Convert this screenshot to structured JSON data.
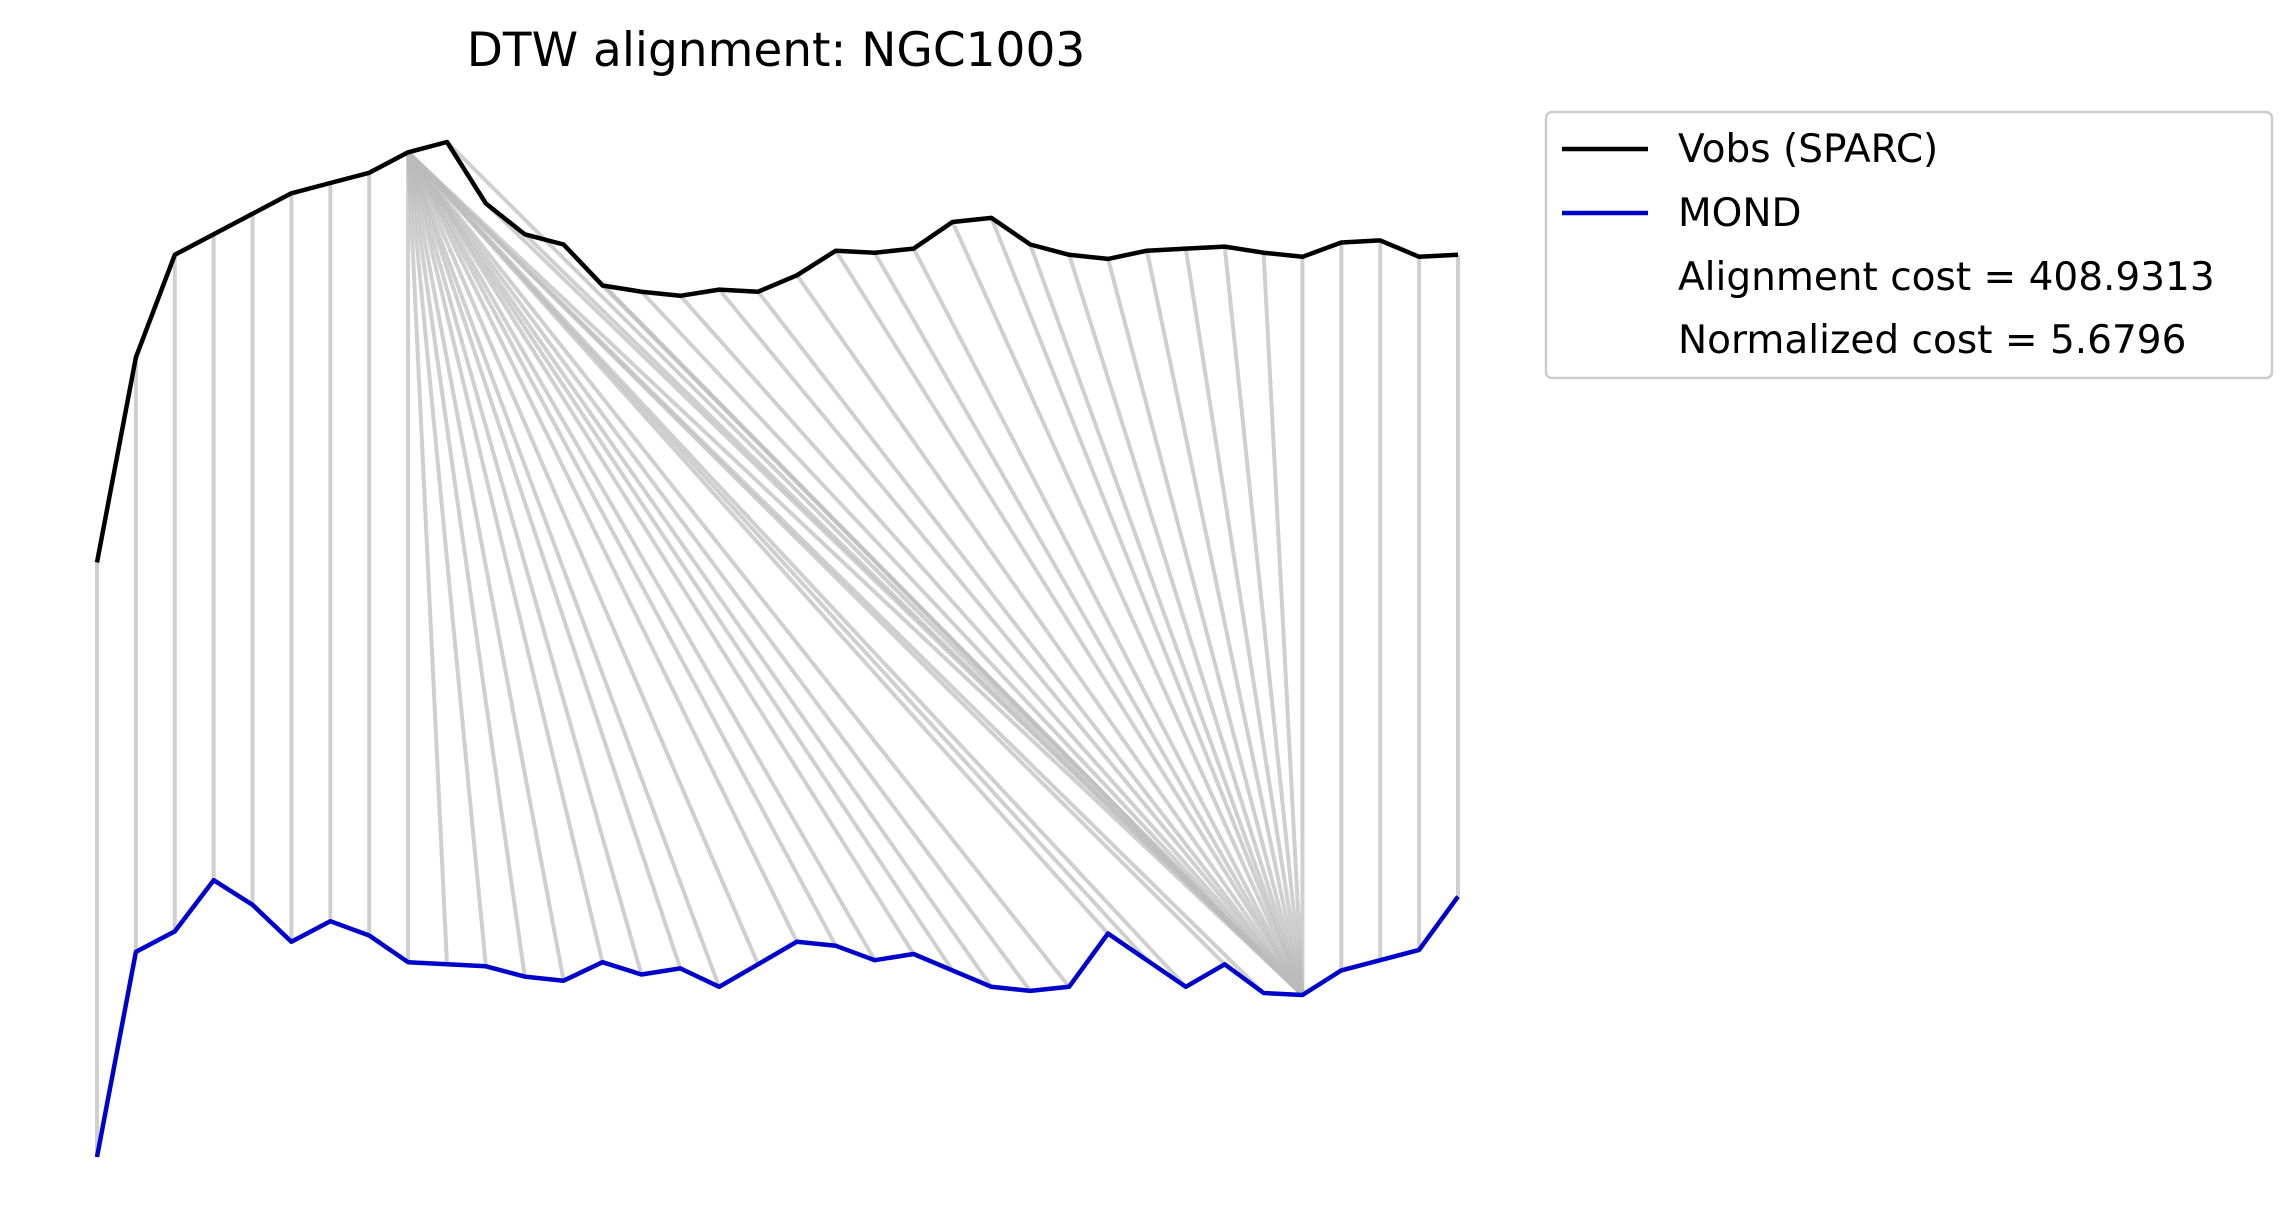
{
  "chart_data": {
    "type": "line",
    "title": "DTW alignment: NGC1003",
    "axes_visible": false,
    "x": [
      0,
      1,
      2,
      3,
      4,
      5,
      6,
      7,
      8,
      9,
      10,
      11,
      12,
      13,
      14,
      15,
      16,
      17,
      18,
      19,
      20,
      21,
      22,
      23,
      24,
      25,
      26,
      27,
      28,
      29,
      30,
      31,
      32,
      33,
      34,
      35
    ],
    "series": [
      {
        "name": "Vobs (SPARC)",
        "color": "#000000",
        "values": [
          1.0,
          1.1,
          1.15,
          1.16,
          1.17,
          1.18,
          1.185,
          1.19,
          1.2,
          1.205,
          1.175,
          1.16,
          1.155,
          1.135,
          1.132,
          1.13,
          1.133,
          1.132,
          1.14,
          1.152,
          1.151,
          1.153,
          1.166,
          1.168,
          1.155,
          1.15,
          1.148,
          1.152,
          1.153,
          1.154,
          1.151,
          1.149,
          1.156,
          1.157,
          1.149,
          1.15
        ]
      },
      {
        "name": "MOND",
        "color": "#0000cc",
        "values": [
          0.71,
          0.81,
          0.82,
          0.845,
          0.833,
          0.815,
          0.825,
          0.818,
          0.805,
          0.804,
          0.803,
          0.798,
          0.796,
          0.805,
          0.799,
          0.802,
          0.793,
          0.804,
          0.815,
          0.813,
          0.806,
          0.809,
          0.801,
          0.793,
          0.791,
          0.793,
          0.819,
          0.806,
          0.793,
          0.804,
          0.79,
          0.789,
          0.801,
          0.806,
          0.811,
          0.837
        ]
      }
    ],
    "alignment": {
      "color": "#bbbbbb",
      "pairs": [
        [
          0,
          0
        ],
        [
          1,
          1
        ],
        [
          2,
          2
        ],
        [
          3,
          3
        ],
        [
          4,
          4
        ],
        [
          5,
          5
        ],
        [
          6,
          6
        ],
        [
          7,
          7
        ],
        [
          8,
          8
        ],
        [
          8,
          9
        ],
        [
          8,
          10
        ],
        [
          8,
          11
        ],
        [
          8,
          12
        ],
        [
          8,
          13
        ],
        [
          8,
          14
        ],
        [
          8,
          15
        ],
        [
          8,
          16
        ],
        [
          8,
          17
        ],
        [
          8,
          18
        ],
        [
          8,
          19
        ],
        [
          8,
          20
        ],
        [
          8,
          21
        ],
        [
          8,
          22
        ],
        [
          8,
          23
        ],
        [
          8,
          24
        ],
        [
          8,
          25
        ],
        [
          8,
          26
        ],
        [
          8,
          27
        ],
        [
          8,
          28
        ],
        [
          8,
          29
        ],
        [
          8,
          30
        ],
        [
          8,
          31
        ],
        [
          9,
          31
        ],
        [
          10,
          31
        ],
        [
          11,
          31
        ],
        [
          12,
          31
        ],
        [
          13,
          31
        ],
        [
          14,
          31
        ],
        [
          15,
          31
        ],
        [
          16,
          31
        ],
        [
          17,
          31
        ],
        [
          18,
          31
        ],
        [
          19,
          31
        ],
        [
          20,
          31
        ],
        [
          21,
          31
        ],
        [
          22,
          31
        ],
        [
          23,
          31
        ],
        [
          24,
          31
        ],
        [
          25,
          31
        ],
        [
          26,
          31
        ],
        [
          27,
          31
        ],
        [
          28,
          31
        ],
        [
          29,
          31
        ],
        [
          30,
          31
        ],
        [
          31,
          31
        ],
        [
          32,
          32
        ],
        [
          33,
          33
        ],
        [
          34,
          34
        ],
        [
          35,
          35
        ]
      ]
    },
    "legend": {
      "placement": "upper-right-outside",
      "entries": [
        {
          "label": "Vobs (SPARC)",
          "color": "#000000",
          "has_line": true
        },
        {
          "label": "MOND",
          "color": "#0000cc",
          "has_line": true
        },
        {
          "label": "Alignment cost = 408.9313",
          "color": "",
          "has_line": false
        },
        {
          "label": "Normalized cost = 5.6796",
          "color": "",
          "has_line": false
        }
      ]
    }
  }
}
